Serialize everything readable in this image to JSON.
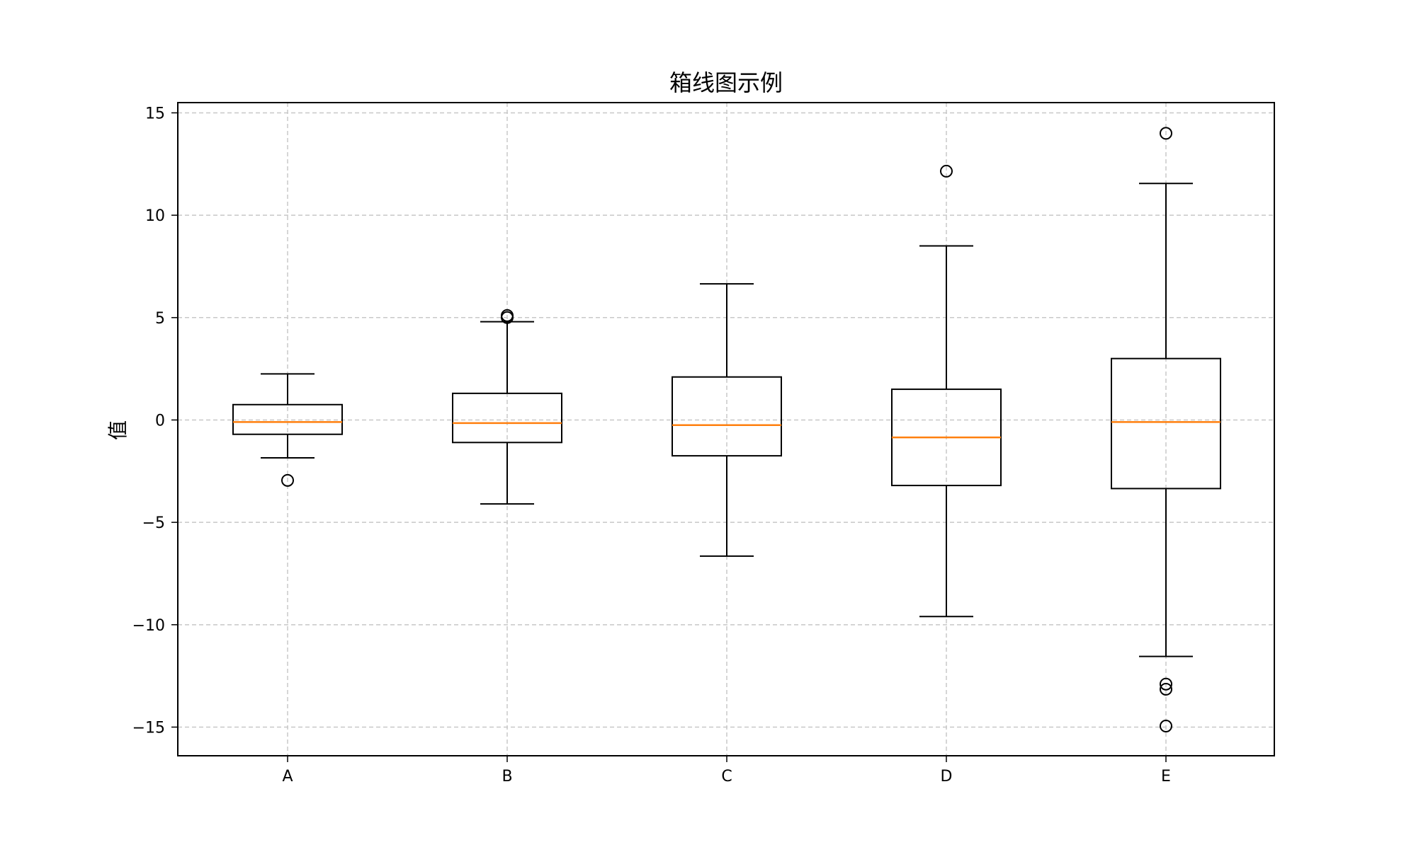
{
  "chart_data": {
    "type": "boxplot",
    "title": "箱线图示例",
    "xlabel": "",
    "ylabel": "值",
    "categories": [
      "A",
      "B",
      "C",
      "D",
      "E"
    ],
    "boxes": [
      {
        "category": "A",
        "whisker_low": -1.85,
        "q1": -0.7,
        "median": -0.1,
        "q3": 0.75,
        "whisker_high": 2.25,
        "outliers": [
          -2.95
        ]
      },
      {
        "category": "B",
        "whisker_low": -4.1,
        "q1": -1.1,
        "median": -0.15,
        "q3": 1.3,
        "whisker_high": 4.8,
        "outliers": [
          5.0,
          5.1
        ]
      },
      {
        "category": "C",
        "whisker_low": -6.65,
        "q1": -1.75,
        "median": -0.25,
        "q3": 2.1,
        "whisker_high": 6.65,
        "outliers": []
      },
      {
        "category": "D",
        "whisker_low": -9.6,
        "q1": -3.2,
        "median": -0.85,
        "q3": 1.5,
        "whisker_high": 8.5,
        "outliers": [
          12.15
        ]
      },
      {
        "category": "E",
        "whisker_low": -11.55,
        "q1": -3.35,
        "median": -0.1,
        "q3": 3.0,
        "whisker_high": 11.55,
        "outliers": [
          14.0,
          -12.9,
          -13.15,
          -14.95
        ]
      }
    ],
    "ylim": [
      -16.4,
      15.5
    ],
    "yticks": [
      -15,
      -10,
      -5,
      0,
      5,
      10,
      15
    ],
    "ytick_labels": [
      "−15",
      "−10",
      "−5",
      "0",
      "5",
      "10",
      "15"
    ],
    "grid": true,
    "legend": "none",
    "colors": {
      "box": "#000000",
      "median": "#ff7f0e",
      "grid": "#c8c8c8"
    }
  }
}
